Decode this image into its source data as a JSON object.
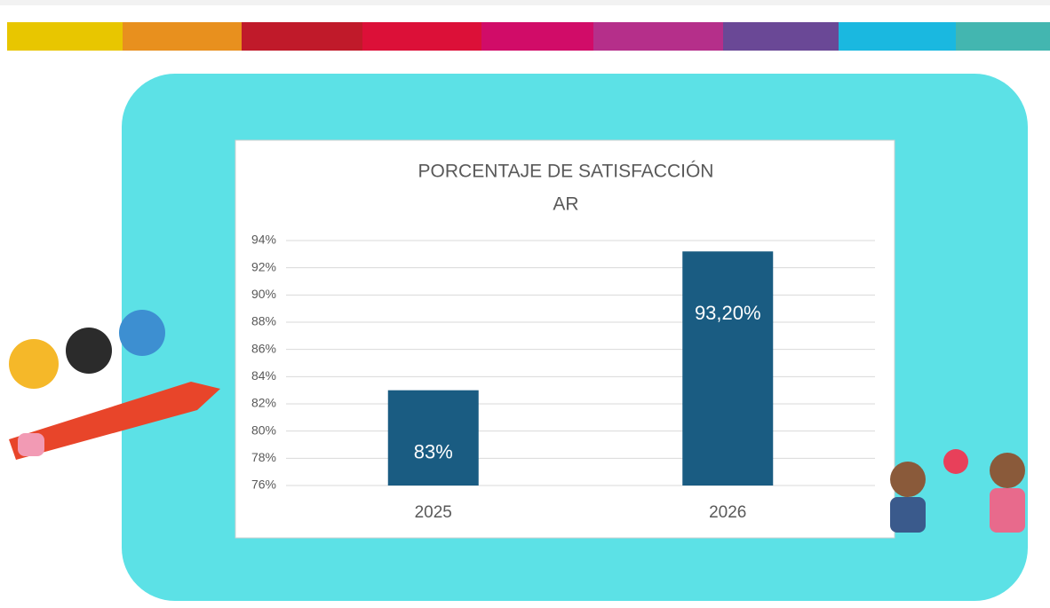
{
  "chart_data": {
    "type": "bar",
    "title": "PORCENTAJE  DE SATISFACCIÓN",
    "subtitle": "AR",
    "categories": [
      "2025",
      "2026"
    ],
    "values": [
      83,
      93.2
    ],
    "value_labels": [
      "83%",
      "93,20%"
    ],
    "color": "#1a5c82",
    "ylim": [
      76,
      94
    ],
    "yticks": [
      {
        "value": 76,
        "label": "76%"
      },
      {
        "value": 78,
        "label": "78%"
      },
      {
        "value": 80,
        "label": "80%"
      },
      {
        "value": 82,
        "label": "82%"
      },
      {
        "value": 84,
        "label": "84%"
      },
      {
        "value": 86,
        "label": "86%"
      },
      {
        "value": 88,
        "label": "88%"
      },
      {
        "value": 90,
        "label": "90%"
      },
      {
        "value": 92,
        "label": "92%"
      },
      {
        "value": 94,
        "label": "94%"
      }
    ],
    "grid": true
  }
}
